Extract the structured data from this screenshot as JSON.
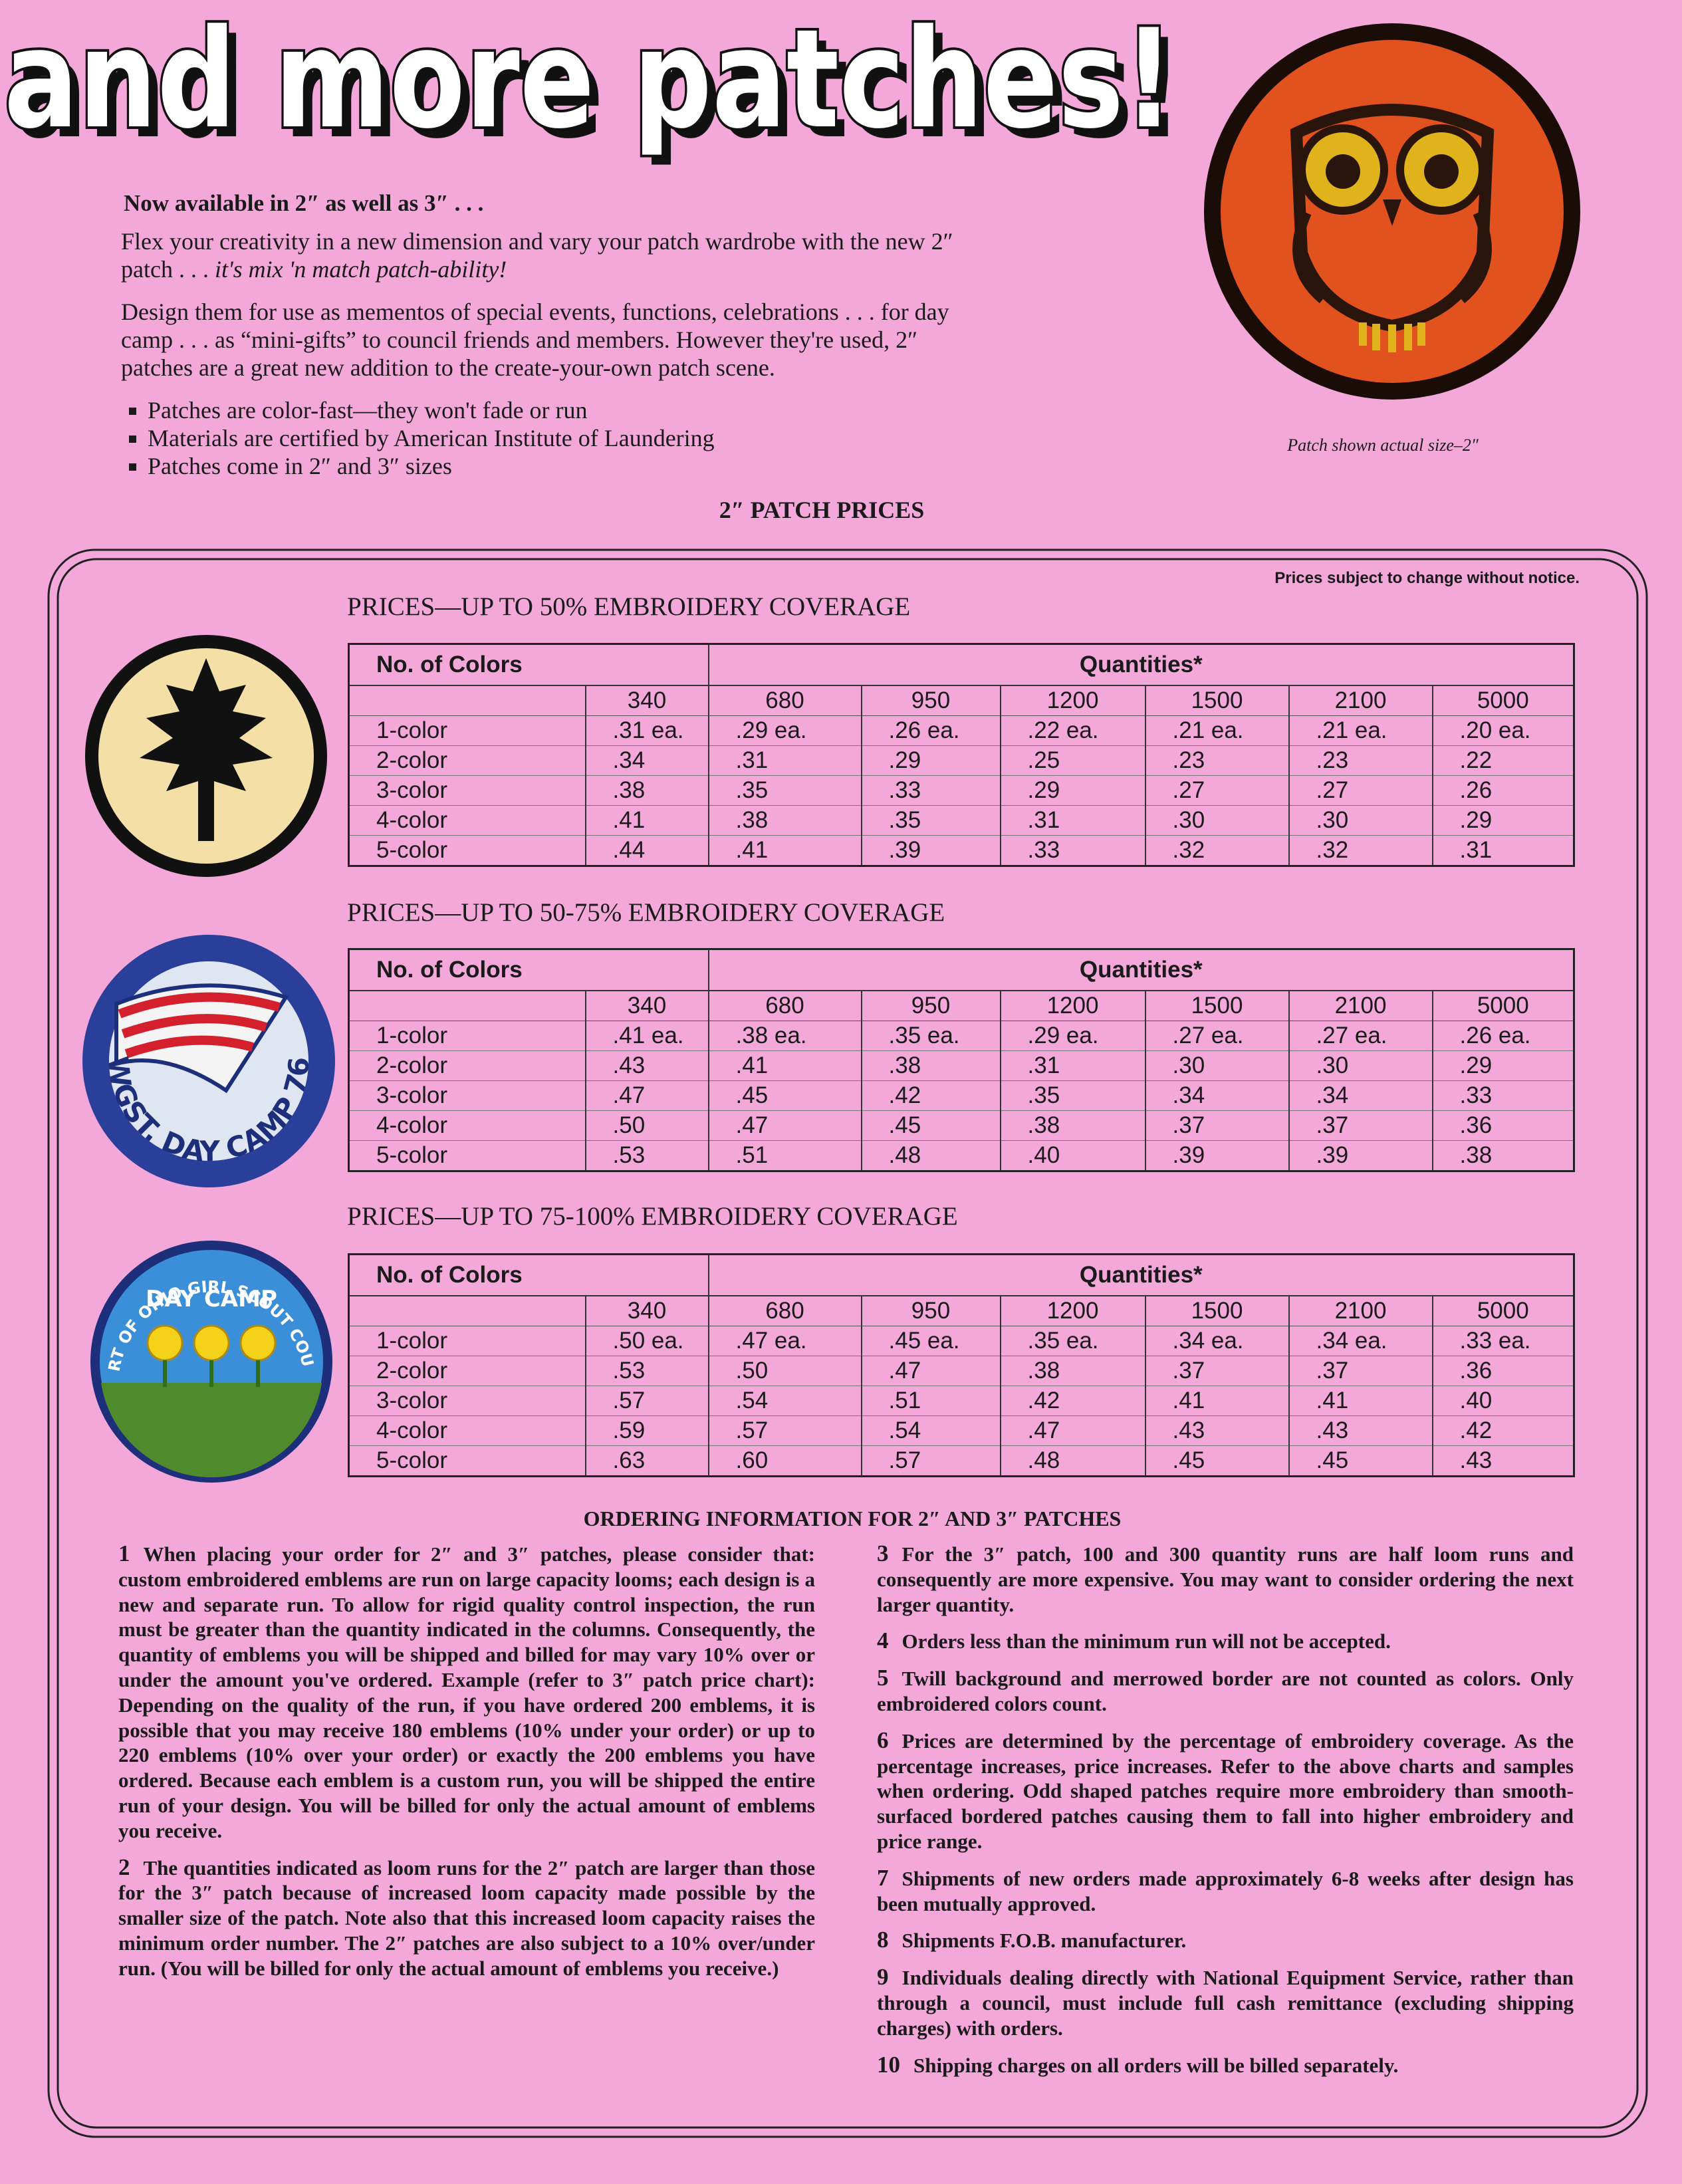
{
  "header": {
    "title": "and more patches!"
  },
  "intro": {
    "lead": "Now available in 2″ as well as 3″ . . .",
    "paragraphs": [
      {
        "text": "Flex your creativity in a new dimension and vary your patch wardrobe with the new 2″ patch . . . ",
        "emphasis": "it's mix 'n match patch-ability!"
      },
      {
        "text": "Design them for use as mementos of special events, functions, celebrations . . . for day camp . . . as “mini-gifts” to council friends and members. However they're used, 2″ patches are a great new addition to the create-your-own patch scene."
      }
    ],
    "bullets": [
      "Patches are color-fast—they won't fade or run",
      "Materials are certified by American Institute of Laundering",
      "Patches come in 2″ and 3″ sizes"
    ]
  },
  "caption": "Patch shown actual size–2″",
  "patches": {
    "flag": "WGST. DAY CAMP 76",
    "ohio_ring": "HEART OF OHIO GIRL SCOUT COUNCIL",
    "ohio_center": "DAY CAMP"
  },
  "prices_title": "2″ PATCH PRICES",
  "notice": "Prices subject to change without notice.",
  "tables": [
    {
      "title": "PRICES—UP TO 50% EMBROIDERY COVERAGE",
      "header": [
        "No. of Colors",
        "Quantities*"
      ],
      "quantities": [
        "340",
        "680",
        "950",
        "1200",
        "1500",
        "2100",
        "5000"
      ],
      "rows": [
        [
          "1-color",
          ".31 ea.",
          ".29 ea.",
          ".26 ea.",
          ".22 ea.",
          ".21 ea.",
          ".21 ea.",
          ".20 ea."
        ],
        [
          "2-color",
          ".34",
          ".31",
          ".29",
          ".25",
          ".23",
          ".23",
          ".22"
        ],
        [
          "3-color",
          ".38",
          ".35",
          ".33",
          ".29",
          ".27",
          ".27",
          ".26"
        ],
        [
          "4-color",
          ".41",
          ".38",
          ".35",
          ".31",
          ".30",
          ".30",
          ".29"
        ],
        [
          "5-color",
          ".44",
          ".41",
          ".39",
          ".33",
          ".32",
          ".32",
          ".31"
        ]
      ]
    },
    {
      "title": "PRICES—UP TO 50-75% EMBROIDERY COVERAGE",
      "header": [
        "No. of Colors",
        "Quantities*"
      ],
      "quantities": [
        "340",
        "680",
        "950",
        "1200",
        "1500",
        "2100",
        "5000"
      ],
      "rows": [
        [
          "1-color",
          ".41 ea.",
          ".38 ea.",
          ".35 ea.",
          ".29 ea.",
          ".27 ea.",
          ".27 ea.",
          ".26 ea."
        ],
        [
          "2-color",
          ".43",
          ".41",
          ".38",
          ".31",
          ".30",
          ".30",
          ".29"
        ],
        [
          "3-color",
          ".47",
          ".45",
          ".42",
          ".35",
          ".34",
          ".34",
          ".33"
        ],
        [
          "4-color",
          ".50",
          ".47",
          ".45",
          ".38",
          ".37",
          ".37",
          ".36"
        ],
        [
          "5-color",
          ".53",
          ".51",
          ".48",
          ".40",
          ".39",
          ".39",
          ".38"
        ]
      ]
    },
    {
      "title": "PRICES—UP TO 75-100% EMBROIDERY COVERAGE",
      "header": [
        "No. of Colors",
        "Quantities*"
      ],
      "quantities": [
        "340",
        "680",
        "950",
        "1200",
        "1500",
        "2100",
        "5000"
      ],
      "rows": [
        [
          "1-color",
          ".50 ea.",
          ".47 ea.",
          ".45 ea.",
          ".35 ea.",
          ".34 ea.",
          ".34 ea.",
          ".33 ea."
        ],
        [
          "2-color",
          ".53",
          ".50",
          ".47",
          ".38",
          ".37",
          ".37",
          ".36"
        ],
        [
          "3-color",
          ".57",
          ".54",
          ".51",
          ".42",
          ".41",
          ".41",
          ".40"
        ],
        [
          "4-color",
          ".59",
          ".57",
          ".54",
          ".47",
          ".43",
          ".43",
          ".42"
        ],
        [
          "5-color",
          ".63",
          ".60",
          ".57",
          ".48",
          ".45",
          ".45",
          ".43"
        ]
      ]
    }
  ],
  "ordering": {
    "title": "ORDERING INFORMATION FOR 2″ AND 3″ PATCHES",
    "items": [
      {
        "number": "1",
        "text": "When placing your order for 2″ and 3″ patches, please consider that: custom embroidered emblems are run on large capacity looms; each design is a new and separate run. To allow for rigid quality control inspection, the run must be greater than the quantity indicated in the columns. Consequently, the quantity of emblems you will be shipped and billed for may vary 10% over or under the amount you've ordered. Example (refer to 3″ patch price chart): Depending on the quality of the run, if you have ordered 200 emblems, it is possible that you may receive 180 emblems (10% under your order) or up to 220 emblems (10% over your order) or exactly the 200 emblems you have ordered. Because each emblem is a custom run, you will be shipped the entire run of your design. You will be billed for only the actual amount of emblems you receive."
      },
      {
        "number": "2",
        "text": "The quantities indicated as loom runs for the 2″ patch are larger than those for the 3″ patch because of increased loom capacity made possible by the smaller size of the patch. Note also that this increased loom capacity raises the minimum order number. The 2″ patches are also subject to a 10% over/under run. (You will be billed for only the actual amount of emblems you receive.)"
      },
      {
        "number": "3",
        "text": "For the 3″ patch, 100 and 300 quantity runs are half loom runs and consequently are more expensive. You may want to consider ordering the next larger quantity."
      },
      {
        "number": "4",
        "text": "Orders less than the minimum run will not be accepted."
      },
      {
        "number": "5",
        "text": "Twill background and merrowed border are not counted as colors. Only embroidered colors count."
      },
      {
        "number": "6",
        "text": "Prices are determined by the percentage of embroidery coverage. As the percentage increases, price increases. Refer to the above charts and samples when ordering. Odd shaped patches require more embroidery than smooth-surfaced bordered patches causing them to fall into higher embroidery and price range."
      },
      {
        "number": "7",
        "text": "Shipments of new orders made approximately 6-8 weeks after design has been mutually approved."
      },
      {
        "number": "8",
        "text": "Shipments F.O.B. manufacturer."
      },
      {
        "number": "9",
        "text": "Individuals dealing directly with National Equipment Service, rather than through a council, must include full cash remittance (excluding shipping charges) with orders."
      },
      {
        "number": "10",
        "text": "Shipping charges on all orders will be billed separately."
      }
    ]
  }
}
